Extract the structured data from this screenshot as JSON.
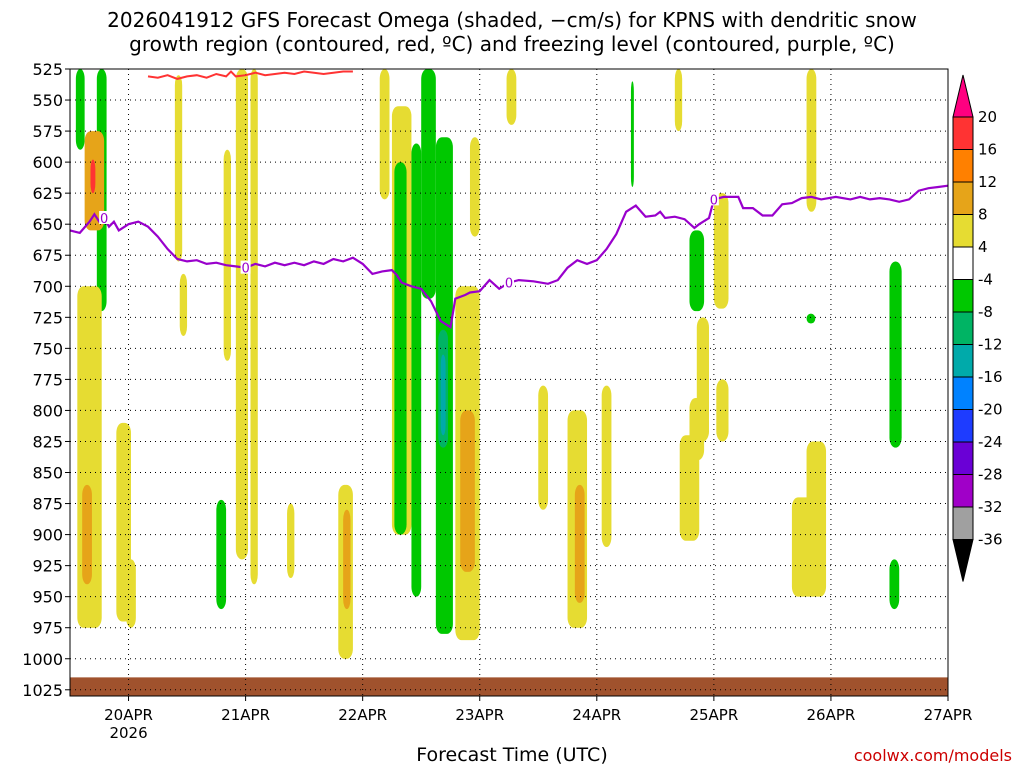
{
  "header": {
    "title_line1": "2026041912 GFS Forecast Omega (shaded, −cm/s) for KPNS with dendritic snow",
    "title_line2": "growth region (contoured, red, ºC) and freezing level (contoured, purple, ºC)"
  },
  "footer": {
    "xlabel": "Forecast Time (UTC)",
    "credit": "coolwx.com/models"
  },
  "chart_data": {
    "type": "heatmap",
    "y_axis": {
      "ticks": [
        525,
        550,
        575,
        600,
        625,
        650,
        675,
        700,
        725,
        750,
        775,
        800,
        825,
        850,
        875,
        900,
        925,
        950,
        975,
        1000,
        1025
      ],
      "range": [
        525,
        1030
      ],
      "units": "hPa",
      "inverted": true
    },
    "x_axis": {
      "ticks": [
        "20APR",
        "21APR",
        "22APR",
        "23APR",
        "24APR",
        "25APR",
        "26APR",
        "27APR"
      ],
      "tick_hours": [
        12,
        36,
        60,
        84,
        108,
        132,
        156,
        180
      ],
      "year_label": "2026",
      "range_hours": [
        0,
        180
      ]
    },
    "grid": true,
    "colorbar": {
      "labels": [
        "20",
        "16",
        "12",
        "8",
        "4",
        "-4",
        "-8",
        "-12",
        "-16",
        "-20",
        "-24",
        "-28",
        "-32",
        "-36"
      ],
      "colors": [
        "#ff0080",
        "#ff3333",
        "#ff8000",
        "#e6a419",
        "#e6dc32",
        "#ffffff",
        "#00c800",
        "#00b464",
        "#00aaaa",
        "#0082ff",
        "#1e3cff",
        "#6a00d6",
        "#a000c8",
        "#a0a0a0",
        "#000000"
      ]
    },
    "freezing_level": {
      "color": "#9900cc",
      "label": "0",
      "points": [
        [
          0,
          655
        ],
        [
          2,
          657
        ],
        [
          4,
          648
        ],
        [
          5,
          642
        ],
        [
          6,
          648
        ],
        [
          7,
          645
        ],
        [
          8,
          652
        ],
        [
          9,
          648
        ],
        [
          10,
          655
        ],
        [
          12,
          650
        ],
        [
          14,
          648
        ],
        [
          16,
          652
        ],
        [
          18,
          660
        ],
        [
          20,
          670
        ],
        [
          22,
          678
        ],
        [
          24,
          680
        ],
        [
          26,
          679
        ],
        [
          28,
          682
        ],
        [
          30,
          681
        ],
        [
          32,
          683
        ],
        [
          34,
          684
        ],
        [
          36,
          685
        ],
        [
          38,
          682
        ],
        [
          40,
          684
        ],
        [
          42,
          681
        ],
        [
          44,
          683
        ],
        [
          46,
          681
        ],
        [
          48,
          683
        ],
        [
          50,
          680
        ],
        [
          52,
          682
        ],
        [
          54,
          678
        ],
        [
          56,
          680
        ],
        [
          58,
          677
        ],
        [
          60,
          682
        ],
        [
          62,
          690
        ],
        [
          64,
          688
        ],
        [
          66,
          687
        ],
        [
          67,
          691
        ],
        [
          68,
          697
        ],
        [
          70,
          700
        ],
        [
          72,
          702
        ],
        [
          74,
          712
        ],
        [
          76,
          728
        ],
        [
          78,
          733
        ],
        [
          79,
          710
        ],
        [
          81,
          707
        ],
        [
          82,
          705
        ],
        [
          84,
          704
        ],
        [
          86,
          695
        ],
        [
          88,
          702
        ],
        [
          90,
          697
        ],
        [
          92,
          695
        ],
        [
          95,
          696
        ],
        [
          98,
          698
        ],
        [
          100,
          695
        ],
        [
          102,
          685
        ],
        [
          104,
          679
        ],
        [
          106,
          682
        ],
        [
          108,
          679
        ],
        [
          110,
          670
        ],
        [
          111,
          664
        ],
        [
          112,
          658
        ],
        [
          114,
          640
        ],
        [
          116,
          635
        ],
        [
          118,
          644
        ],
        [
          120,
          643
        ],
        [
          121,
          640
        ],
        [
          122,
          645
        ],
        [
          124,
          644
        ],
        [
          126,
          646
        ],
        [
          128,
          653
        ],
        [
          129,
          650
        ],
        [
          131,
          645
        ],
        [
          132,
          630
        ],
        [
          134,
          628
        ],
        [
          137,
          628
        ],
        [
          138,
          637
        ],
        [
          140,
          637
        ],
        [
          142,
          643
        ],
        [
          144,
          643
        ],
        [
          146,
          634
        ],
        [
          148,
          633
        ],
        [
          150,
          629
        ],
        [
          152,
          628
        ],
        [
          154,
          630
        ],
        [
          157,
          628
        ],
        [
          160,
          630
        ],
        [
          162,
          628
        ],
        [
          164,
          630
        ],
        [
          166,
          629
        ],
        [
          168,
          630
        ],
        [
          170,
          632
        ],
        [
          172,
          630
        ],
        [
          174,
          623
        ],
        [
          176,
          621
        ],
        [
          178,
          620
        ],
        [
          180,
          619
        ]
      ]
    },
    "dgz_contour": {
      "color": "#ff3333",
      "points": [
        [
          16,
          531
        ],
        [
          18,
          532
        ],
        [
          20,
          530
        ],
        [
          22,
          533
        ],
        [
          24,
          531
        ],
        [
          26,
          530
        ],
        [
          28,
          532
        ],
        [
          30,
          529
        ],
        [
          32,
          531
        ],
        [
          33,
          527
        ],
        [
          34,
          531
        ],
        [
          36,
          530
        ],
        [
          38,
          528
        ],
        [
          40,
          530
        ],
        [
          42,
          529
        ],
        [
          44,
          528
        ],
        [
          46,
          529
        ],
        [
          48,
          527
        ],
        [
          50,
          528
        ],
        [
          52,
          529
        ],
        [
          54,
          528
        ],
        [
          56,
          527
        ],
        [
          58,
          527
        ]
      ]
    },
    "omega_regions": [
      {
        "value": -8,
        "color": "#00c800",
        "t": [
          1.2,
          3.0
        ],
        "p": [
          525,
          590
        ]
      },
      {
        "value": -8,
        "color": "#00c800",
        "t": [
          5.5,
          7.5
        ],
        "p": [
          525,
          720
        ]
      },
      {
        "value": 8,
        "color": "#e6a419",
        "t": [
          3.0,
          7.0
        ],
        "p": [
          575,
          655
        ]
      },
      {
        "value": 16,
        "color": "#ff3333",
        "t": [
          4.2,
          5.2
        ],
        "p": [
          598,
          625
        ]
      },
      {
        "value": 4,
        "color": "#e6dc32",
        "t": [
          1.5,
          6.5
        ],
        "p": [
          700,
          975
        ]
      },
      {
        "value": 8,
        "color": "#e6a419",
        "t": [
          2.5,
          4.5
        ],
        "p": [
          860,
          940
        ]
      },
      {
        "value": 4,
        "color": "#e6dc32",
        "t": [
          9.5,
          12.5
        ],
        "p": [
          810,
          970
        ]
      },
      {
        "value": 4,
        "color": "#e6dc32",
        "t": [
          11.5,
          13.5
        ],
        "p": [
          920,
          975
        ]
      },
      {
        "value": 4,
        "color": "#e6dc32",
        "t": [
          21.5,
          23.0
        ],
        "p": [
          530,
          680
        ]
      },
      {
        "value": 4,
        "color": "#e6dc32",
        "t": [
          22.5,
          24.0
        ],
        "p": [
          690,
          740
        ]
      },
      {
        "value": 4,
        "color": "#e6dc32",
        "t": [
          31.5,
          33.0
        ],
        "p": [
          590,
          760
        ]
      },
      {
        "value": 4,
        "color": "#e6dc32",
        "t": [
          34.0,
          36.5
        ],
        "p": [
          525,
          920
        ]
      },
      {
        "value": 4,
        "color": "#e6dc32",
        "t": [
          37.0,
          38.5
        ],
        "p": [
          525,
          940
        ]
      },
      {
        "value": -8,
        "color": "#00c800",
        "t": [
          30.0,
          32.0
        ],
        "p": [
          872,
          960
        ]
      },
      {
        "value": 4,
        "color": "#e6dc32",
        "t": [
          44.5,
          46.0
        ],
        "p": [
          875,
          935
        ]
      },
      {
        "value": 4,
        "color": "#e6dc32",
        "t": [
          55.0,
          58.0
        ],
        "p": [
          860,
          1000
        ]
      },
      {
        "value": 8,
        "color": "#e6a419",
        "t": [
          56.0,
          57.5
        ],
        "p": [
          880,
          960
        ]
      },
      {
        "value": 4,
        "color": "#e6dc32",
        "t": [
          63.5,
          65.5
        ],
        "p": [
          525,
          630
        ]
      },
      {
        "value": 4,
        "color": "#e6dc32",
        "t": [
          66.0,
          70.0
        ],
        "p": [
          555,
          900
        ]
      },
      {
        "value": -8,
        "color": "#00c800",
        "t": [
          66.5,
          69.0
        ],
        "p": [
          600,
          900
        ]
      },
      {
        "value": -8,
        "color": "#00c800",
        "t": [
          70.0,
          72.0
        ],
        "p": [
          585,
          950
        ]
      },
      {
        "value": -8,
        "color": "#00c800",
        "t": [
          72.0,
          75.0
        ],
        "p": [
          525,
          710
        ]
      },
      {
        "value": -8,
        "color": "#00c800",
        "t": [
          75.0,
          78.5
        ],
        "p": [
          580,
          980
        ]
      },
      {
        "value": -12,
        "color": "#00b464",
        "t": [
          75.5,
          77.5
        ],
        "p": [
          735,
          830
        ]
      },
      {
        "value": -16,
        "color": "#00aaaa",
        "t": [
          76.0,
          77.0
        ],
        "p": [
          755,
          820
        ]
      },
      {
        "value": 4,
        "color": "#e6dc32",
        "t": [
          79.0,
          84.0
        ],
        "p": [
          700,
          985
        ]
      },
      {
        "value": 8,
        "color": "#e6a419",
        "t": [
          80.0,
          83.0
        ],
        "p": [
          800,
          930
        ]
      },
      {
        "value": 4,
        "color": "#e6dc32",
        "t": [
          82.0,
          84.0
        ],
        "p": [
          580,
          660
        ]
      },
      {
        "value": 4,
        "color": "#e6dc32",
        "t": [
          89.5,
          91.5
        ],
        "p": [
          525,
          570
        ]
      },
      {
        "value": 4,
        "color": "#e6dc32",
        "t": [
          96.0,
          98.0
        ],
        "p": [
          780,
          880
        ]
      },
      {
        "value": 4,
        "color": "#e6dc32",
        "t": [
          102.0,
          106.0
        ],
        "p": [
          800,
          975
        ]
      },
      {
        "value": 8,
        "color": "#e6a419",
        "t": [
          103.5,
          105.5
        ],
        "p": [
          860,
          955
        ]
      },
      {
        "value": 4,
        "color": "#e6dc32",
        "t": [
          109.0,
          111.0
        ],
        "p": [
          780,
          910
        ]
      },
      {
        "value": -8,
        "color": "#00c800",
        "t": [
          115.0,
          115.6
        ],
        "p": [
          535,
          620
        ]
      },
      {
        "value": 4,
        "color": "#e6dc32",
        "t": [
          124.0,
          125.5
        ],
        "p": [
          525,
          575
        ]
      },
      {
        "value": 4,
        "color": "#e6dc32",
        "t": [
          125.0,
          129.0
        ],
        "p": [
          820,
          905
        ]
      },
      {
        "value": 4,
        "color": "#e6dc32",
        "t": [
          127.0,
          130.0
        ],
        "p": [
          790,
          840
        ]
      },
      {
        "value": -8,
        "color": "#00c800",
        "t": [
          127.0,
          130.0
        ],
        "p": [
          655,
          720
        ]
      },
      {
        "value": 4,
        "color": "#e6dc32",
        "t": [
          128.5,
          131.0
        ],
        "p": [
          725,
          825
        ]
      },
      {
        "value": 4,
        "color": "#e6dc32",
        "t": [
          132.0,
          135.0
        ],
        "p": [
          625,
          718
        ]
      },
      {
        "value": 4,
        "color": "#e6dc32",
        "t": [
          132.5,
          135.0
        ],
        "p": [
          775,
          825
        ]
      },
      {
        "value": 4,
        "color": "#e6dc32",
        "t": [
          151.0,
          153.0
        ],
        "p": [
          525,
          640
        ]
      },
      {
        "value": -8,
        "color": "#00c800",
        "t": [
          151.0,
          152.8
        ],
        "p": [
          722,
          730
        ]
      },
      {
        "value": 4,
        "color": "#e6dc32",
        "t": [
          148.0,
          155.0
        ],
        "p": [
          870,
          950
        ]
      },
      {
        "value": 4,
        "color": "#e6dc32",
        "t": [
          151.0,
          155.0
        ],
        "p": [
          825,
          880
        ]
      },
      {
        "value": -8,
        "color": "#00c800",
        "t": [
          168.0,
          170.5
        ],
        "p": [
          680,
          830
        ]
      },
      {
        "value": -8,
        "color": "#00c800",
        "t": [
          168.0,
          170.0
        ],
        "p": [
          920,
          960
        ]
      }
    ],
    "ground": {
      "color": "#a0522d",
      "top_hpa": 1015
    }
  }
}
